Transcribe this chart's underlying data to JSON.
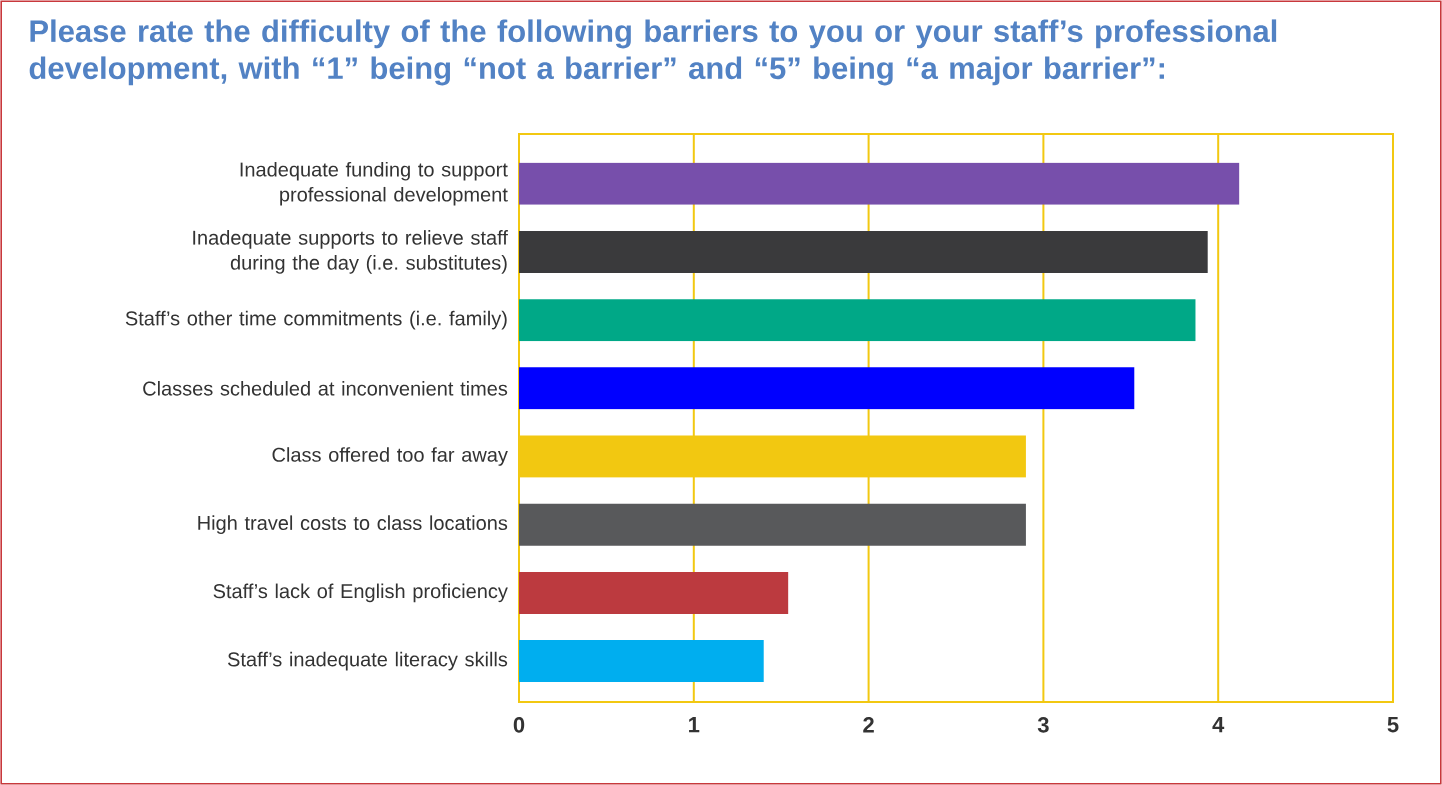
{
  "chart_data": {
    "type": "bar",
    "orientation": "horizontal",
    "title": "Please rate the difficulty of the following barriers to you or your staff’s professional development, with “1” being “not a barrier” and “5” being “a major barrier”:",
    "categories": [
      "Inadequate funding to support professional development",
      "Inadequate supports to relieve staff during the day (i.e. substitutes)",
      "Staff’s other time commitments (i.e. family)",
      "Classes scheduled at inconvenient times",
      "Class offered too far away",
      "High travel costs to class locations",
      "Staff’s lack of English proficiency",
      "Staff’s inadequate literacy skills"
    ],
    "values": [
      4.12,
      3.94,
      3.87,
      3.52,
      2.9,
      2.9,
      1.54,
      1.4
    ],
    "colors": [
      "#774fab",
      "#3a3a3c",
      "#00a887",
      "#0000ff",
      "#f2c811",
      "#58595b",
      "#bc3a3f",
      "#00aeef"
    ],
    "xlim": [
      0,
      5
    ],
    "xticks": [
      0,
      1,
      2,
      3,
      4,
      5
    ],
    "grid": "x"
  }
}
